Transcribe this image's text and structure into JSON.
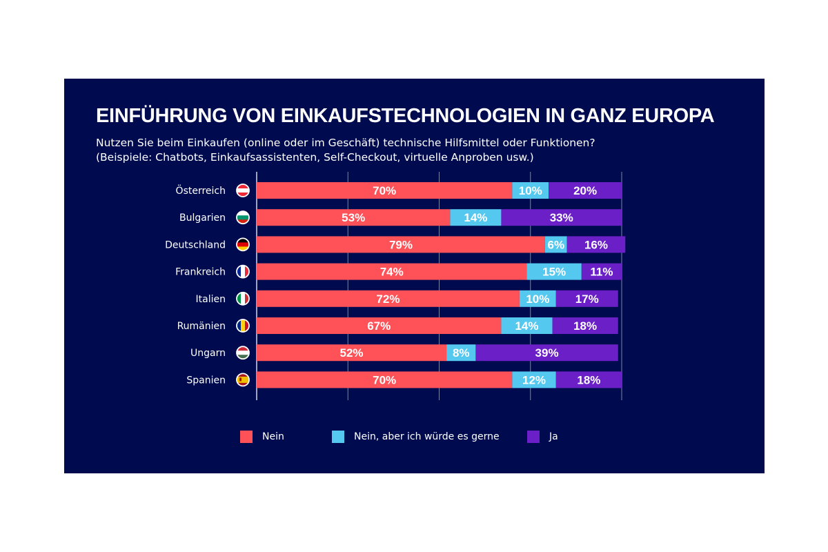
{
  "title": "EINFÜHRUNG VON EINKAUFSTECHNOLOGIEN IN GANZ EUROPA",
  "subtitle_line1": "Nutzen Sie beim Einkaufen (online oder im Geschäft) technische Hilfsmittel oder Funktionen?",
  "subtitle_line2": "(Beispiele: Chatbots, Einkaufsassistenten, Self-Checkout, virtuelle Anproben usw.)",
  "colors": {
    "background": "#000b4f",
    "nein": "#fe5258",
    "nein_aber": "#54c8ef",
    "ja": "#6a20c6",
    "grid": "#7b84a8",
    "text": "#ffffff"
  },
  "legend": [
    {
      "label": "Nein",
      "color": "#fe5258"
    },
    {
      "label": "Nein, aber ich würde es gerne",
      "color": "#54c8ef"
    },
    {
      "label": "Ja",
      "color": "#6a20c6"
    }
  ],
  "chart_data": {
    "type": "bar",
    "orientation": "horizontal",
    "stacked": true,
    "categories": [
      "Österreich",
      "Bulgarien",
      "Deutschland",
      "Frankreich",
      "Italien",
      "Rumänien",
      "Ungarn",
      "Spanien"
    ],
    "category_icons": [
      "flag-austria",
      "flag-bulgaria",
      "flag-germany",
      "flag-france",
      "flag-italy",
      "flag-romania",
      "flag-hungary",
      "flag-spain"
    ],
    "series": [
      {
        "name": "Nein",
        "color": "#fe5258",
        "values": [
          70,
          53,
          79,
          74,
          72,
          67,
          52,
          70
        ]
      },
      {
        "name": "Nein, aber ich würde es gerne",
        "color": "#54c8ef",
        "values": [
          10,
          14,
          6,
          15,
          10,
          14,
          8,
          12
        ]
      },
      {
        "name": "Ja",
        "color": "#6a20c6",
        "values": [
          20,
          33,
          16,
          11,
          17,
          18,
          39,
          18
        ]
      }
    ],
    "value_suffix": "%",
    "xlim": [
      0,
      100
    ],
    "grid": true,
    "legend_position": "bottom"
  }
}
